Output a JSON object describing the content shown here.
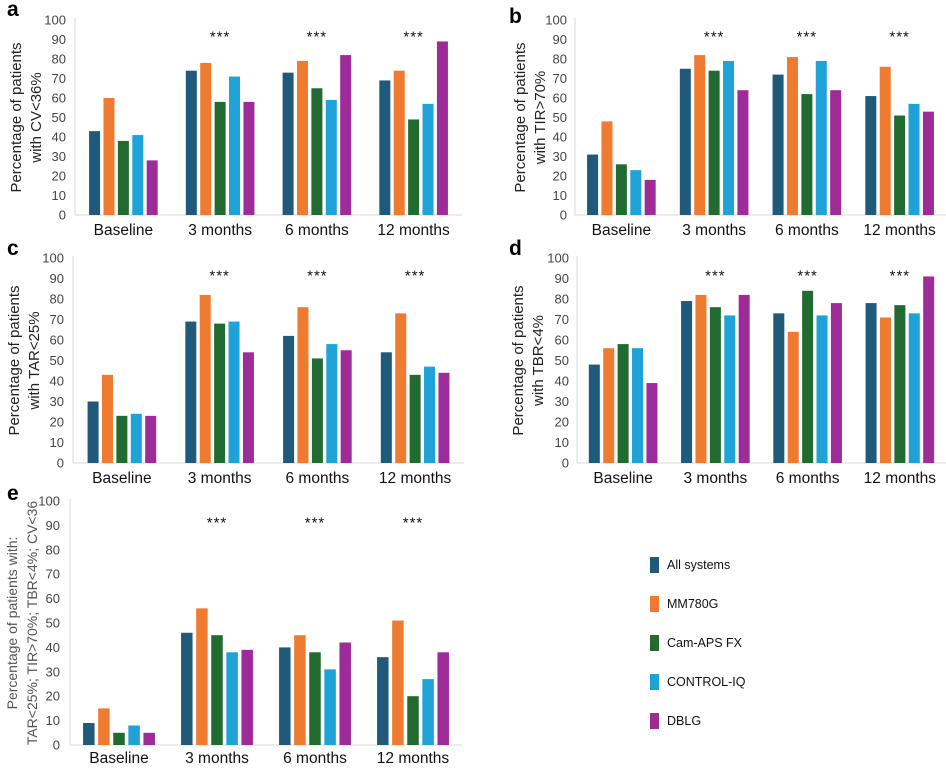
{
  "legend": {
    "series": [
      {
        "name": "All systems",
        "color": "#1f5a7a"
      },
      {
        "name": "MM780G",
        "color": "#ef7b31"
      },
      {
        "name": "Cam-APS FX",
        "color": "#226b30"
      },
      {
        "name": "CONTROL-IQ",
        "color": "#1ea2d8"
      },
      {
        "name": "DBLG",
        "color": "#9e2c98"
      }
    ]
  },
  "chart_data": [
    {
      "panel": "a",
      "type": "bar",
      "ylabel_lines": [
        "Percentage of patients",
        "with CV<36%"
      ],
      "ylim": [
        0,
        100
      ],
      "yticks": [
        0,
        10,
        20,
        30,
        40,
        50,
        60,
        70,
        80,
        90,
        100
      ],
      "categories": [
        "Baseline",
        "3 months",
        "6 months",
        "12 months"
      ],
      "significance": [
        "",
        "***",
        "***",
        "***"
      ],
      "series": [
        {
          "name": "All systems",
          "values": [
            43,
            74,
            73,
            69
          ]
        },
        {
          "name": "MM780G",
          "values": [
            60,
            78,
            79,
            74
          ]
        },
        {
          "name": "Cam-APS FX",
          "values": [
            38,
            58,
            65,
            49
          ]
        },
        {
          "name": "CONTROL-IQ",
          "values": [
            41,
            71,
            59,
            57
          ]
        },
        {
          "name": "DBLG",
          "values": [
            28,
            58,
            82,
            89
          ]
        }
      ]
    },
    {
      "panel": "b",
      "type": "bar",
      "ylabel_lines": [
        "Percentage of patients",
        "with TIR>70%"
      ],
      "ylim": [
        0,
        100
      ],
      "yticks": [
        0,
        10,
        20,
        30,
        40,
        50,
        60,
        70,
        80,
        90,
        100
      ],
      "categories": [
        "Baseline",
        "3 months",
        "6 months",
        "12 months"
      ],
      "significance": [
        "",
        "***",
        "***",
        "***"
      ],
      "series": [
        {
          "name": "All systems",
          "values": [
            31,
            75,
            72,
            61
          ]
        },
        {
          "name": "MM780G",
          "values": [
            48,
            82,
            81,
            76
          ]
        },
        {
          "name": "Cam-APS FX",
          "values": [
            26,
            74,
            62,
            51
          ]
        },
        {
          "name": "CONTROL-IQ",
          "values": [
            23,
            79,
            79,
            57
          ]
        },
        {
          "name": "DBLG",
          "values": [
            18,
            64,
            64,
            53
          ]
        }
      ]
    },
    {
      "panel": "c",
      "type": "bar",
      "ylabel_lines": [
        "Percentage of patients",
        "with TAR<25%"
      ],
      "ylim": [
        0,
        100
      ],
      "yticks": [
        0,
        10,
        20,
        30,
        40,
        50,
        60,
        70,
        80,
        90,
        100
      ],
      "categories": [
        "Baseline",
        "3 months",
        "6 months",
        "12 months"
      ],
      "significance": [
        "",
        "***",
        "***",
        "***"
      ],
      "series": [
        {
          "name": "All systems",
          "values": [
            30,
            69,
            62,
            54
          ]
        },
        {
          "name": "MM780G",
          "values": [
            43,
            82,
            76,
            73
          ]
        },
        {
          "name": "Cam-APS FX",
          "values": [
            23,
            68,
            51,
            43
          ]
        },
        {
          "name": "CONTROL-IQ",
          "values": [
            24,
            69,
            58,
            47
          ]
        },
        {
          "name": "DBLG",
          "values": [
            23,
            54,
            55,
            44
          ]
        }
      ]
    },
    {
      "panel": "d",
      "type": "bar",
      "ylabel_lines": [
        "Percentage of patients",
        "with TBR<4%"
      ],
      "ylim": [
        0,
        100
      ],
      "yticks": [
        0,
        10,
        20,
        30,
        40,
        50,
        60,
        70,
        80,
        90,
        100
      ],
      "categories": [
        "Baseline",
        "3 months",
        "6 months",
        "12 months"
      ],
      "significance": [
        "",
        "***",
        "***",
        "***"
      ],
      "series": [
        {
          "name": "All systems",
          "values": [
            48,
            79,
            73,
            78
          ]
        },
        {
          "name": "MM780G",
          "values": [
            56,
            82,
            64,
            71
          ]
        },
        {
          "name": "Cam-APS FX",
          "values": [
            58,
            76,
            84,
            77
          ]
        },
        {
          "name": "CONTROL-IQ",
          "values": [
            56,
            72,
            72,
            73
          ]
        },
        {
          "name": "DBLG",
          "values": [
            39,
            82,
            78,
            91
          ]
        }
      ]
    },
    {
      "panel": "e",
      "type": "bar",
      "ylabel_lines": [
        "Percentage of patients with:",
        "TAR<25%; TIR>70%; TBR<4%; CV<36"
      ],
      "ylim": [
        0,
        100
      ],
      "yticks": [
        0,
        10,
        20,
        30,
        40,
        50,
        60,
        70,
        80,
        90,
        100
      ],
      "categories": [
        "Baseline",
        "3 months",
        "6 months",
        "12 months"
      ],
      "significance": [
        "",
        "***",
        "***",
        "***"
      ],
      "series": [
        {
          "name": "All systems",
          "values": [
            9,
            46,
            40,
            36
          ]
        },
        {
          "name": "MM780G",
          "values": [
            15,
            56,
            45,
            51
          ]
        },
        {
          "name": "Cam-APS FX",
          "values": [
            5,
            45,
            38,
            20
          ]
        },
        {
          "name": "CONTROL-IQ",
          "values": [
            8,
            38,
            31,
            27
          ]
        },
        {
          "name": "DBLG",
          "values": [
            5,
            39,
            42,
            38
          ]
        }
      ]
    }
  ]
}
